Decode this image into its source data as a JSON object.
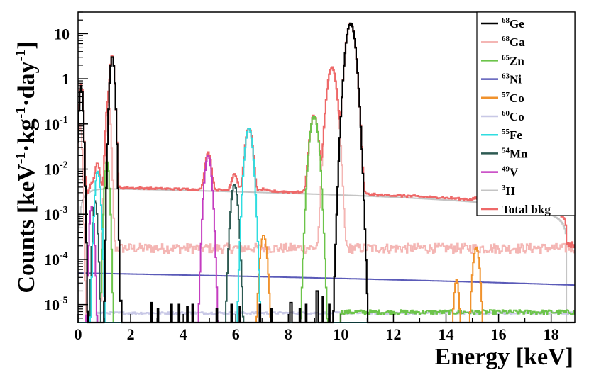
{
  "chart_data": {
    "type": "line",
    "title": "",
    "xlabel": "Energy [keV]",
    "ylabel_parts": [
      "Counts [keV",
      "-1",
      "·kg",
      "-1",
      "·day",
      "-1",
      "]"
    ],
    "xlim": [
      0,
      18.9
    ],
    "ylim": [
      4e-06,
      30
    ],
    "yscale": "log",
    "x_ticks": [
      0,
      2,
      4,
      6,
      8,
      10,
      12,
      14,
      16,
      18
    ],
    "y_ticks": [
      {
        "value": 1e-05,
        "base": "10",
        "exp": "-5"
      },
      {
        "value": 0.0001,
        "base": "10",
        "exp": "-4"
      },
      {
        "value": 0.001,
        "base": "10",
        "exp": "-3"
      },
      {
        "value": 0.01,
        "base": "10",
        "exp": "-2"
      },
      {
        "value": 0.1,
        "base": "10",
        "exp": "-1"
      },
      {
        "value": 1,
        "base": "1",
        "exp": ""
      },
      {
        "value": 10,
        "base": "10",
        "exp": ""
      }
    ],
    "legend_position": "top-right",
    "series": [
      {
        "id": "ge68",
        "mass": "68",
        "element": "Ge",
        "color": "#000000",
        "peaks": [
          {
            "x": 0.12,
            "h": 0.7,
            "s": 0.05
          },
          {
            "x": 1.3,
            "h": 3.2,
            "s": 0.06
          },
          {
            "x": 10.37,
            "h": 17,
            "s": 0.12
          }
        ],
        "spikes": [
          [
            1.65,
            1.2e-05
          ],
          [
            2.8,
            1.1e-05
          ],
          [
            3.05,
            8e-06
          ],
          [
            3.55,
            1e-05
          ],
          [
            3.85,
            1e-05
          ],
          [
            4.15,
            9e-06
          ],
          [
            4.35,
            1e-05
          ],
          [
            5.3,
            8e-06
          ],
          [
            5.85,
            1e-05
          ],
          [
            6.15,
            9e-06
          ],
          [
            6.9,
            1e-05
          ],
          [
            7.35,
            8e-06
          ],
          [
            8.1,
            1.1e-05
          ],
          [
            8.45,
            8e-06
          ],
          [
            8.7,
            1e-05
          ],
          [
            9.1,
            2e-05
          ],
          [
            9.3,
            1.5e-05
          ],
          [
            9.55,
            1e-05
          ]
        ]
      },
      {
        "id": "ga68",
        "mass": "68",
        "element": "Ga",
        "color": "#f4b6b4",
        "peaks": [
          {
            "x": 0.08,
            "h": 0.1,
            "s": 0.05
          },
          {
            "x": 1.15,
            "h": 0.3,
            "s": 0.06
          },
          {
            "x": 9.66,
            "h": 1.8,
            "s": 0.12
          }
        ],
        "flat": {
          "from": 0.9,
          "to": 18.9,
          "level": 0.00018,
          "noise": 0.25
        }
      },
      {
        "id": "zn65",
        "mass": "65",
        "element": "Zn",
        "color": "#6cc44a",
        "peaks": [
          {
            "x": 1.1,
            "h": 0.015,
            "s": 0.06
          },
          {
            "x": 8.98,
            "h": 0.15,
            "s": 0.11
          }
        ],
        "flat": {
          "from": 10.0,
          "to": 18.9,
          "level": 6.8e-06,
          "noise": 0.12
        }
      },
      {
        "id": "ni63",
        "mass": "63",
        "element": "Ni",
        "color": "#5a5ab8",
        "linear": {
          "from": 0,
          "to": 18.9,
          "y0": 5e-05,
          "y1": 2.7e-05
        }
      },
      {
        "id": "co57",
        "mass": "57",
        "element": "Co",
        "color": "#f0922c",
        "peaks": [
          {
            "x": 7.06,
            "h": 0.00035,
            "s": 0.09
          },
          {
            "x": 14.4,
            "h": 3.5e-05,
            "s": 0.07
          },
          {
            "x": 15.15,
            "h": 0.00018,
            "s": 0.09
          }
        ]
      },
      {
        "id": "co60",
        "mass": "60",
        "element": "Co",
        "color": "#c8c8e6",
        "flat": {
          "from": 0.7,
          "to": 18.9,
          "level": 6.5e-06,
          "noise": 0.06
        }
      },
      {
        "id": "fe55",
        "mass": "55",
        "element": "Fe",
        "color": "#30dde0",
        "peaks": [
          {
            "x": 0.75,
            "h": 0.009,
            "s": 0.07
          },
          {
            "x": 6.5,
            "h": 0.08,
            "s": 0.1
          }
        ]
      },
      {
        "id": "mn54",
        "mass": "54",
        "element": "Mn",
        "color": "#2d5a52",
        "peaks": [
          {
            "x": 0.65,
            "h": 0.002,
            "s": 0.06
          },
          {
            "x": 5.95,
            "h": 0.0045,
            "s": 0.09
          }
        ]
      },
      {
        "id": "v49",
        "mass": "49",
        "element": "V",
        "color": "#c43cc0",
        "peaks": [
          {
            "x": 0.52,
            "h": 0.0015,
            "s": 0.06
          },
          {
            "x": 4.95,
            "h": 0.02,
            "s": 0.09
          }
        ]
      },
      {
        "id": "h3",
        "mass": "3",
        "element": "H",
        "color": "#c4c4c4",
        "tritium": {
          "amp": 0.0038,
          "endpoint": 18.6
        }
      },
      {
        "id": "total",
        "mass": "",
        "element": "Total bkg",
        "color": "#ee6868",
        "total": true
      }
    ]
  }
}
